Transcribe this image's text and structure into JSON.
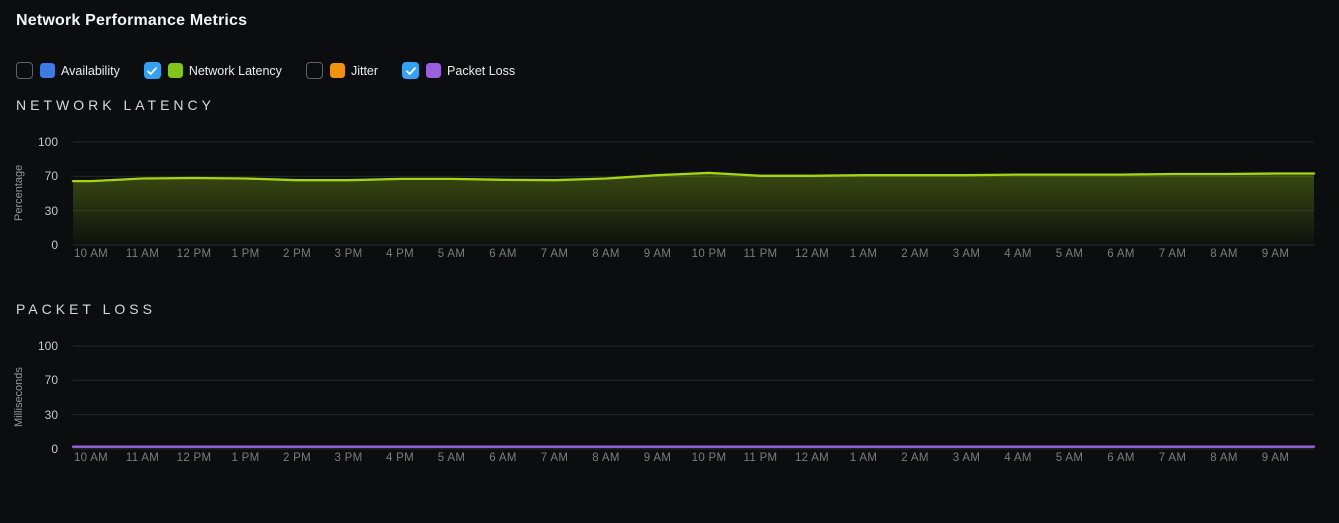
{
  "page": {
    "title": "Network Performance Metrics",
    "background_color": "#0c0d0e"
  },
  "legend": {
    "checkbox_checked_color": "#35a1f0",
    "checkmark_icon": "check",
    "items": [
      {
        "label": "Availability",
        "checked": false,
        "swatch_color": "#3d7ae2"
      },
      {
        "label": "Network Latency",
        "checked": true,
        "swatch_color": "#86c51c"
      },
      {
        "label": "Jitter",
        "checked": false,
        "swatch_color": "#f0930e"
      },
      {
        "label": "Packet Loss",
        "checked": true,
        "swatch_color": "#9b5fe0"
      }
    ]
  },
  "chart_data": [
    {
      "type": "area",
      "title": "NETWORK LATENCY",
      "ylabel": "Percentage",
      "xlabel": "",
      "ylim": [
        0,
        100
      ],
      "yticks": [
        0,
        30,
        70,
        100
      ],
      "grid": true,
      "legend_position": "top-checkboxes",
      "categories": [
        "10 AM",
        "11 AM",
        "12 PM",
        "1 PM",
        "2 PM",
        "3 PM",
        "4 PM",
        "5 AM",
        "6 AM",
        "7 AM",
        "8 AM",
        "9 AM",
        "10 PM",
        "11 PM",
        "12 AM",
        "1 AM",
        "2 AM",
        "3 AM",
        "4 AM",
        "5 AM",
        "6 AM",
        "7 AM",
        "8 AM",
        "9 AM"
      ],
      "series": [
        {
          "name": "Network Latency",
          "color": "#a4d614",
          "values": [
            64.5,
            67.5,
            68,
            67.5,
            65.5,
            65.5,
            67,
            67,
            66,
            65.5,
            67.5,
            71,
            73,
            70.5,
            70.5,
            71,
            71,
            71,
            71.5,
            71.5,
            71.5,
            72,
            72,
            72.5
          ]
        }
      ]
    },
    {
      "type": "line",
      "title": "PACKET LOSS",
      "ylabel": "Milliseconds",
      "xlabel": "",
      "ylim": [
        0,
        100
      ],
      "yticks": [
        0,
        30,
        70,
        100
      ],
      "grid": true,
      "legend_position": "top-checkboxes",
      "categories": [
        "10 AM",
        "11 AM",
        "12 PM",
        "1 PM",
        "2 PM",
        "3 PM",
        "4 PM",
        "5 AM",
        "6 AM",
        "7 AM",
        "8 AM",
        "9 AM",
        "10 PM",
        "11 PM",
        "12 AM",
        "1 AM",
        "2 AM",
        "3 AM",
        "4 AM",
        "5 AM",
        "6 AM",
        "7 AM",
        "8 AM",
        "9 AM"
      ],
      "series": [
        {
          "name": "Packet Loss",
          "color": "#9565dd",
          "values": [
            2,
            2,
            2,
            2,
            2,
            2,
            2,
            2,
            2,
            2,
            2,
            2,
            2,
            2,
            2,
            2,
            2,
            2,
            2,
            2,
            2,
            2,
            2,
            2
          ]
        }
      ]
    }
  ]
}
